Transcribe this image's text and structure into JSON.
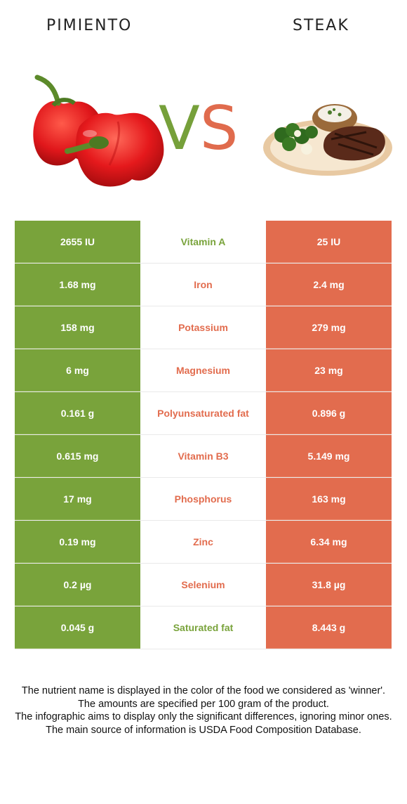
{
  "header": {
    "left_food": "PIMIENTO",
    "right_food": "STEAK",
    "vs_v": "V",
    "vs_s": "S"
  },
  "colors": {
    "left_food_color": "#79a33b",
    "right_food_color": "#e26c4e"
  },
  "rows": [
    {
      "nutrient": "Vitamin A",
      "left": "2655 IU",
      "right": "25 IU",
      "winner": "left"
    },
    {
      "nutrient": "Iron",
      "left": "1.68 mg",
      "right": "2.4 mg",
      "winner": "right"
    },
    {
      "nutrient": "Potassium",
      "left": "158 mg",
      "right": "279 mg",
      "winner": "right"
    },
    {
      "nutrient": "Magnesium",
      "left": "6 mg",
      "right": "23 mg",
      "winner": "right"
    },
    {
      "nutrient": "Polyunsaturated fat",
      "left": "0.161 g",
      "right": "0.896 g",
      "winner": "right"
    },
    {
      "nutrient": "Vitamin B3",
      "left": "0.615 mg",
      "right": "5.149 mg",
      "winner": "right"
    },
    {
      "nutrient": "Phosphorus",
      "left": "17 mg",
      "right": "163 mg",
      "winner": "right"
    },
    {
      "nutrient": "Zinc",
      "left": "0.19 mg",
      "right": "6.34 mg",
      "winner": "right"
    },
    {
      "nutrient": "Selenium",
      "left": "0.2 µg",
      "right": "31.8 µg",
      "winner": "right"
    },
    {
      "nutrient": "Saturated fat",
      "left": "0.045 g",
      "right": "8.443 g",
      "winner": "left"
    }
  ],
  "footer": [
    "The nutrient name is displayed in the color of the food we considered as 'winner'.",
    "The amounts are specified per 100 gram of the product.",
    "The infographic aims to display only the significant differences, ignoring minor ones.",
    "The main source of information is USDA Food Composition Database."
  ]
}
